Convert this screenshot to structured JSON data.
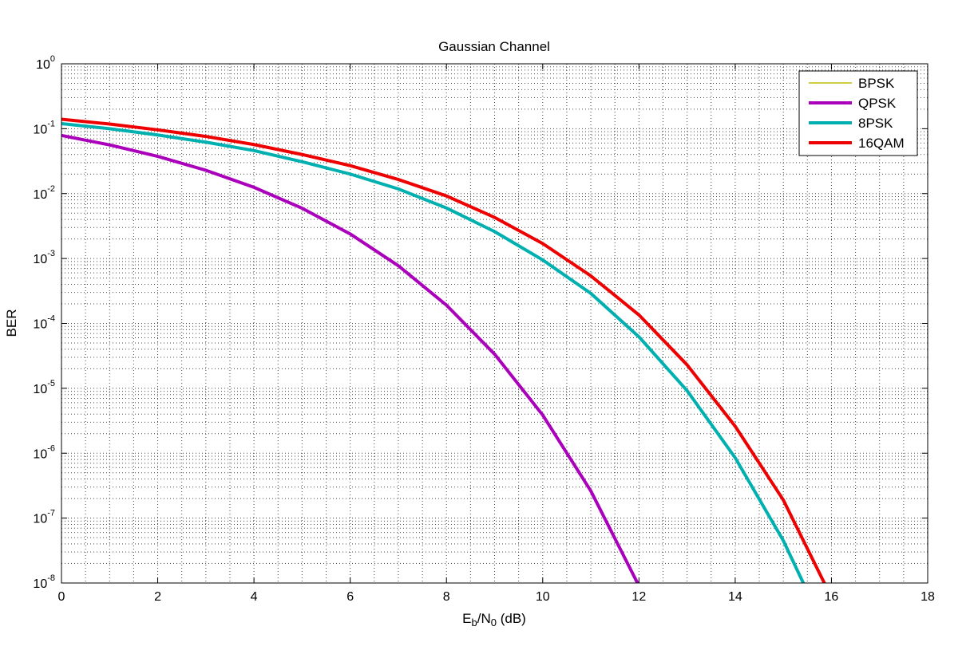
{
  "chart_data": {
    "type": "line",
    "title": "Gaussian Channel",
    "xlabel": {
      "main": "E",
      "sub1": "b",
      "mid": "/N",
      "sub2": "0",
      "tail": " (dB)"
    },
    "ylabel": "BER",
    "xlim": [
      0,
      18
    ],
    "ylim": [
      1e-08,
      1
    ],
    "yscale": "log",
    "grid": true,
    "legend_position": "top-right",
    "x_ticks": [
      0,
      2,
      4,
      6,
      8,
      10,
      12,
      14,
      16,
      18
    ],
    "y_ticks": [
      {
        "base": "10",
        "exp": "0",
        "value": 1
      },
      {
        "base": "10",
        "exp": "-1",
        "value": 0.1
      },
      {
        "base": "10",
        "exp": "-2",
        "value": 0.01
      },
      {
        "base": "10",
        "exp": "-3",
        "value": 0.001
      },
      {
        "base": "10",
        "exp": "-4",
        "value": 0.0001
      },
      {
        "base": "10",
        "exp": "-5",
        "value": 1e-05
      },
      {
        "base": "10",
        "exp": "-6",
        "value": 1e-06
      },
      {
        "base": "10",
        "exp": "-7",
        "value": 1e-07
      },
      {
        "base": "10",
        "exp": "-8",
        "value": 1e-08
      }
    ],
    "series": [
      {
        "name": "BPSK",
        "color": "#bfbf00",
        "width": 1.5,
        "x": [
          0,
          1,
          2,
          3,
          4,
          5,
          6,
          7,
          8,
          9,
          10,
          11,
          12
        ],
        "y": [
          0.0786,
          0.0563,
          0.0375,
          0.0229,
          0.0125,
          0.00595,
          0.00239,
          0.000773,
          0.000191,
          3.36e-05,
          3.87e-06,
          2.62e-07,
          9.01e-09
        ]
      },
      {
        "name": "QPSK",
        "color": "#aa00bb",
        "width": 4,
        "x": [
          0,
          1,
          2,
          3,
          4,
          5,
          6,
          7,
          8,
          9,
          10,
          11,
          12
        ],
        "y": [
          0.0786,
          0.0563,
          0.0375,
          0.0229,
          0.0125,
          0.00595,
          0.00239,
          0.000773,
          0.000191,
          3.36e-05,
          3.87e-06,
          2.62e-07,
          9.01e-09
        ]
      },
      {
        "name": "8PSK",
        "color": "#00b0b0",
        "width": 4,
        "x": [
          0,
          1,
          2,
          3,
          4,
          5,
          6,
          7,
          8,
          9,
          10,
          11,
          12,
          13,
          14,
          15,
          16
        ],
        "y": [
          0.12,
          0.1,
          0.08,
          0.062,
          0.046,
          0.031,
          0.02,
          0.0118,
          0.006,
          0.0026,
          0.00095,
          0.00029,
          6.2e-05,
          9.2e-06,
          8.5e-07,
          4.5e-08,
          1.2e-09
        ]
      },
      {
        "name": "16QAM",
        "color": "#ee0000",
        "width": 4,
        "x": [
          0,
          1,
          2,
          3,
          4,
          5,
          6,
          7,
          8,
          9,
          10,
          11,
          12,
          13,
          14,
          15,
          16
        ],
        "y": [
          0.14,
          0.118,
          0.096,
          0.076,
          0.057,
          0.04,
          0.027,
          0.0165,
          0.0092,
          0.0043,
          0.0017,
          0.00054,
          0.000135,
          2.3e-05,
          2.6e-06,
          1.9e-07,
          6e-09
        ]
      }
    ]
  }
}
